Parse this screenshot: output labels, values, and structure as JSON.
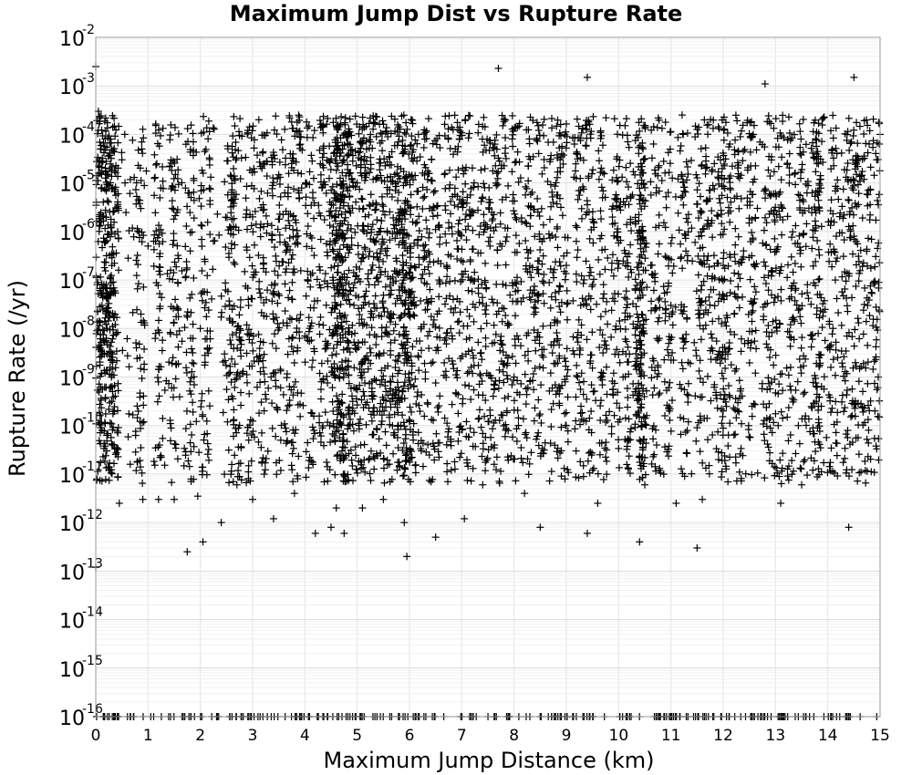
{
  "chart_data": {
    "type": "scatter",
    "title": "Maximum Jump Dist vs Rupture Rate",
    "xlabel": "Maximum Jump Distance (km)",
    "ylabel": "Rupture Rate (/yr)",
    "xlim": [
      0,
      15
    ],
    "ylim": [
      1e-16,
      0.01
    ],
    "yscale": "log",
    "grid": true,
    "marker": "+",
    "marker_color": "#000000",
    "xticks": [
      "0",
      "1",
      "2",
      "3",
      "4",
      "5",
      "6",
      "7",
      "8",
      "9",
      "10",
      "11",
      "12",
      "13",
      "14",
      "15"
    ],
    "yticks": [
      {
        "base": "10",
        "exp": "-2",
        "value": 0.01
      },
      {
        "base": "10",
        "exp": "-3",
        "value": 0.001
      },
      {
        "base": "10",
        "exp": "-4",
        "value": 0.0001
      },
      {
        "base": "10",
        "exp": "-5",
        "value": 1e-05
      },
      {
        "base": "10",
        "exp": "-6",
        "value": 1e-06
      },
      {
        "base": "10",
        "exp": "-7",
        "value": 1e-07
      },
      {
        "base": "10",
        "exp": "-8",
        "value": 1e-08
      },
      {
        "base": "10",
        "exp": "-9",
        "value": 1e-09
      },
      {
        "base": "10",
        "exp": "-10",
        "value": 1e-10
      },
      {
        "base": "10",
        "exp": "-11",
        "value": 1e-11
      },
      {
        "base": "10",
        "exp": "-12",
        "value": 1e-12
      },
      {
        "base": "10",
        "exp": "-13",
        "value": 1e-13
      },
      {
        "base": "10",
        "exp": "-14",
        "value": 1e-14
      },
      {
        "base": "10",
        "exp": "-15",
        "value": 1e-15
      },
      {
        "base": "10",
        "exp": "-16",
        "value": 1e-16
      }
    ],
    "series": [
      {
        "points": [
          [
            0.0,
            1.2e-13
          ],
          [
            0.0,
            0.0025
          ],
          [
            0.05,
            0.0003
          ],
          [
            0.1,
            5e-05
          ],
          [
            0.15,
            2e-06
          ],
          [
            0.2,
            8e-08
          ],
          [
            0.3,
            1e-09
          ],
          [
            0.35,
            4e-11
          ],
          [
            0.4,
            3.5e-11
          ],
          [
            0.45,
            2.5e-12
          ],
          [
            0.9,
            3e-12
          ],
          [
            1.2,
            3e-12
          ],
          [
            1.5,
            3e-12
          ],
          [
            1.75,
            2.5e-13
          ],
          [
            1.95,
            3.5e-12
          ],
          [
            2.05,
            4e-13
          ],
          [
            2.4,
            1e-12
          ],
          [
            2.7,
            6e-12
          ],
          [
            3.0,
            3e-12
          ],
          [
            3.4,
            1.2e-12
          ],
          [
            3.8,
            4e-12
          ],
          [
            4.2,
            6e-13
          ],
          [
            4.5,
            8e-13
          ],
          [
            4.6,
            2e-12
          ],
          [
            4.75,
            6e-13
          ],
          [
            5.1,
            2e-12
          ],
          [
            5.5,
            3e-12
          ],
          [
            5.9,
            1e-12
          ],
          [
            5.95,
            2e-13
          ],
          [
            6.5,
            5e-13
          ],
          [
            7.05,
            1.2e-12
          ],
          [
            7.4,
            6e-12
          ],
          [
            7.7,
            0.0023
          ],
          [
            8.2,
            4e-12
          ],
          [
            8.5,
            8e-13
          ],
          [
            9.4,
            0.0015
          ],
          [
            9.4,
            6e-13
          ],
          [
            9.6,
            2.5e-12
          ],
          [
            10.4,
            4e-13
          ],
          [
            10.5,
            6e-12
          ],
          [
            11.1,
            2.5e-12
          ],
          [
            11.5,
            3e-13
          ],
          [
            11.6,
            3e-12
          ],
          [
            12.8,
            0.0011
          ],
          [
            13.1,
            2.5e-12
          ],
          [
            13.5,
            6e-12
          ],
          [
            14.4,
            8e-13
          ],
          [
            14.5,
            0.0015
          ],
          [
            14.9,
            2e-10
          ],
          [
            15.0,
            0.0001
          ],
          [
            0.5,
            3e-05
          ],
          [
            1.0,
            5e-07
          ],
          [
            2.0,
            1e-08
          ],
          [
            3.0,
            2e-06
          ],
          [
            4.0,
            7e-09
          ],
          [
            4.7,
            3e-07
          ],
          [
            5.0,
            1e-05
          ],
          [
            6.0,
            5e-08
          ],
          [
            7.0,
            4e-06
          ],
          [
            8.0,
            1e-09
          ],
          [
            9.0,
            2e-07
          ],
          [
            10.4,
            1e-06
          ],
          [
            11.0,
            3e-08
          ],
          [
            12.0,
            2e-10
          ],
          [
            13.0,
            6e-06
          ],
          [
            14.0,
            4e-09
          ],
          [
            14.5,
            8e-07
          ],
          [
            2.6,
            4e-10
          ],
          [
            5.7,
            9e-09
          ],
          [
            10.4,
            5e-11
          ]
        ]
      }
    ]
  }
}
